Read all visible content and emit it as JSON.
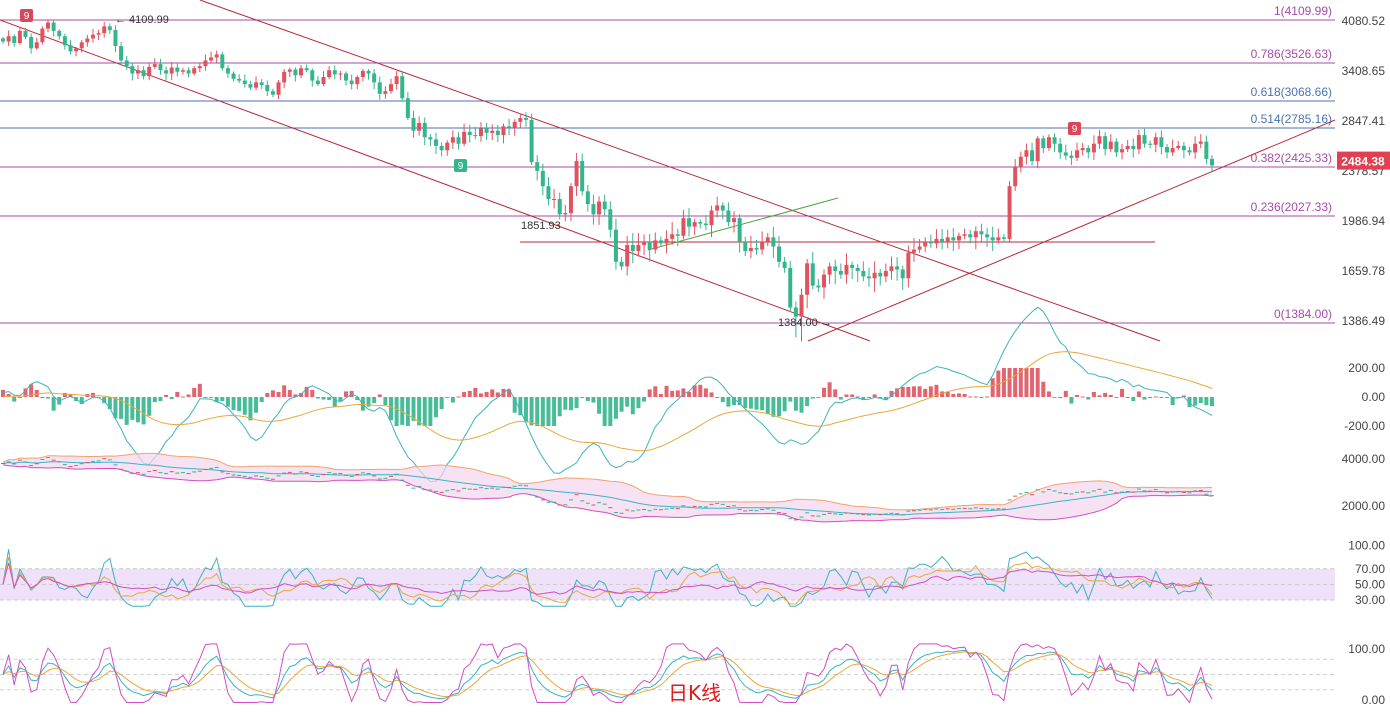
{
  "chart_data": [
    {
      "type": "candlestick",
      "title": "",
      "price_axis_ticks": [
        "4080.52",
        "3408.65",
        "2847.41",
        "2378.57",
        "1986.94",
        "1659.78",
        "1386.49"
      ],
      "price_axis_values": [
        4080.52,
        3408.65,
        2847.41,
        2378.57,
        1986.94,
        1659.78,
        1386.49
      ],
      "current_price": "2484.38",
      "colors": {
        "up": "#e0525e",
        "down": "#34b58d",
        "fib": "#a64ca6",
        "fib_blue": "#4b72b5",
        "trend": "#b8293a",
        "support_green": "#4aa63a"
      },
      "fib_levels": [
        {
          "label": "1(4109.99)",
          "value": 4109.99,
          "color": "#a64ca6"
        },
        {
          "label": "0.786(3526.63)",
          "value": 3526.63,
          "color": "#a64ca6"
        },
        {
          "label": "0.618(3068.66)",
          "value": 3068.66,
          "color": "#4b72b5"
        },
        {
          "label": "0.514(2785.16)",
          "value": 2785.16,
          "color": "#4b72b5"
        },
        {
          "label": "0.382(2425.33)",
          "value": 2425.33,
          "color": "#a64ca6"
        },
        {
          "label": "0.236(2027.33)",
          "value": 2027.33,
          "color": "#a64ca6"
        },
        {
          "label": "0(1384.00)",
          "value": 1384.0,
          "color": "#a64ca6"
        }
      ],
      "annotations": {
        "high": "4109.99",
        "low": "1384.00",
        "level": "1851.93",
        "td_sell": "9",
        "td_buy": "9"
      },
      "candles_close": [
        3810,
        3880,
        3790,
        3950,
        3870,
        3720,
        3800,
        3980,
        4060,
        3950,
        3880,
        3760,
        3680,
        3720,
        3800,
        3850,
        3900,
        3920,
        4010,
        3960,
        3750,
        3560,
        3480,
        3380,
        3420,
        3350,
        3470,
        3510,
        3420,
        3380,
        3460,
        3400,
        3420,
        3380,
        3450,
        3480,
        3560,
        3600,
        3640,
        3450,
        3380,
        3320,
        3300,
        3260,
        3220,
        3280,
        3250,
        3180,
        3140,
        3280,
        3400,
        3430,
        3360,
        3450,
        3420,
        3300,
        3260,
        3340,
        3420,
        3370,
        3380,
        3300,
        3260,
        3340,
        3410,
        3380,
        3280,
        3150,
        3180,
        3260,
        3350,
        3100,
        2880,
        2760,
        2830,
        2700,
        2680,
        2620,
        2580,
        2650,
        2700,
        2640,
        2750,
        2720,
        2710,
        2780,
        2740,
        2760,
        2720,
        2800,
        2790,
        2840,
        2880,
        2860,
        2470,
        2380,
        2260,
        2160,
        2160,
        2040,
        2050,
        2260,
        2480,
        2220,
        2120,
        2040,
        2140,
        2080,
        1930,
        1720,
        1690,
        1830,
        1790,
        1830,
        1850,
        1800,
        1860,
        1840,
        1870,
        1900,
        1890,
        2010,
        1950,
        1980,
        1970,
        1960,
        2070,
        2110,
        2070,
        1980,
        2010,
        1850,
        1790,
        1810,
        1800,
        1850,
        1880,
        1820,
        1720,
        1680,
        1460,
        1410,
        1530,
        1710,
        1580,
        1570,
        1640,
        1690,
        1660,
        1640,
        1700,
        1680,
        1660,
        1630,
        1620,
        1650,
        1630,
        1660,
        1690,
        1670,
        1620,
        1780,
        1800,
        1820,
        1850,
        1840,
        1870,
        1850,
        1880,
        1860,
        1890,
        1900,
        1880,
        1920,
        1900,
        1880,
        1860,
        1880,
        1870,
        2260,
        2420,
        2520,
        2580,
        2480,
        2690,
        2600,
        2700,
        2640,
        2560,
        2530,
        2510,
        2580,
        2600,
        2560,
        2640,
        2710,
        2590,
        2660,
        2560,
        2590,
        2620,
        2590,
        2720,
        2640,
        2630,
        2700,
        2610,
        2560,
        2600,
        2620,
        2580,
        2560,
        2640,
        2660,
        2500,
        2440
      ]
    },
    {
      "type": "macd",
      "axis_ticks": [
        "200.00",
        "0.00",
        "-200.00"
      ],
      "axis_values": [
        200,
        0,
        -200
      ]
    },
    {
      "type": "boll",
      "axis_ticks": [
        "4000.00",
        "2000.00"
      ],
      "axis_values": [
        4000,
        2000
      ]
    },
    {
      "type": "rsi",
      "axis_ticks": [
        "100.00",
        "70.00",
        "50.00",
        "30.00"
      ],
      "axis_values": [
        100,
        70,
        50,
        30
      ]
    },
    {
      "type": "kdj",
      "axis_ticks": [
        "100.00",
        "0.00"
      ],
      "axis_values": [
        100,
        0
      ]
    }
  ],
  "caption": "日K线"
}
